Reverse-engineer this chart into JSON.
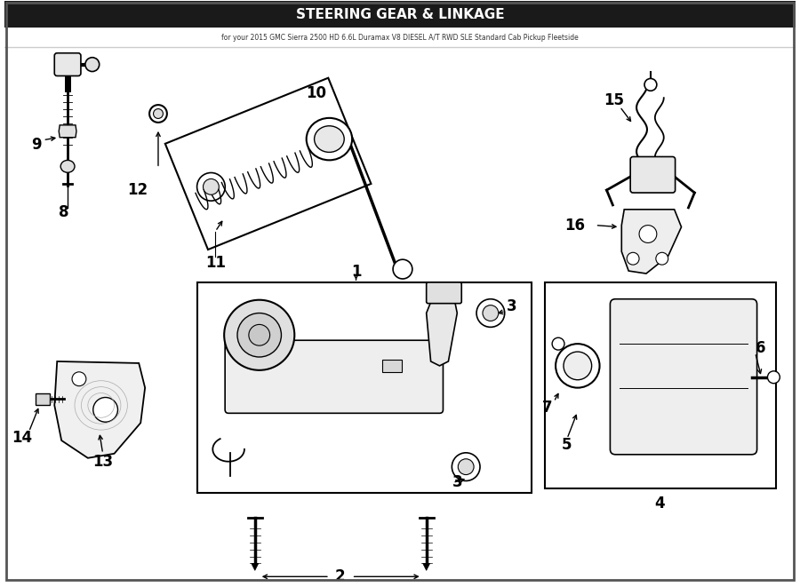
{
  "title": "STEERING GEAR & LINKAGE",
  "subtitle": "for your 2015 GMC Sierra 2500 HD 6.6L Duramax V8 DIESEL A/T RWD SLE Standard Cab Pickup Fleetside",
  "bg_color": "#ffffff",
  "line_color": "#000000",
  "text_color": "#000000",
  "border_color": "#555555",
  "title_bg": "#1a1a1a",
  "title_fg": "#ffffff",
  "part_labels": [
    "1",
    "2",
    "3",
    "4",
    "5",
    "6",
    "7",
    "8",
    "9",
    "10",
    "11",
    "12",
    "13",
    "14",
    "15",
    "16"
  ]
}
